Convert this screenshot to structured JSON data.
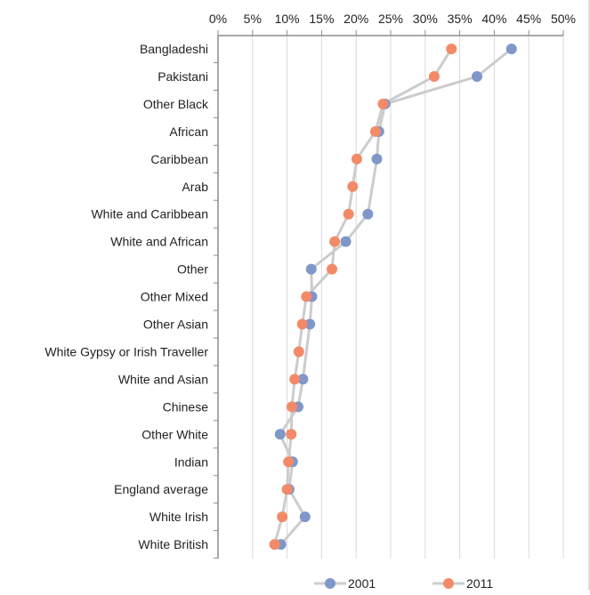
{
  "chart_data": {
    "type": "line",
    "orientation": "horizontal-dot-plot",
    "title": "",
    "xlabel": "",
    "ylabel": "",
    "xlim": [
      0,
      50
    ],
    "x_tick_labels": [
      "0%",
      "5%",
      "10%",
      "15%",
      "20%",
      "25%",
      "30%",
      "35%",
      "40%",
      "45%",
      "50%"
    ],
    "categories": [
      "Bangladeshi",
      "Pakistani",
      "Other Black",
      "African",
      "Caribbean",
      "Arab",
      "White and Caribbean",
      "White and African",
      "Other",
      "Other Mixed",
      "Other Asian",
      "White Gypsy or Irish Traveller",
      "White and Asian",
      "Chinese",
      "Other White",
      "Indian",
      "England average",
      "White Irish",
      "White British"
    ],
    "series": [
      {
        "name": "2001",
        "color": "#7f97c9",
        "values": [
          42.5,
          37.5,
          24.2,
          23.3,
          23.0,
          null,
          21.7,
          18.5,
          13.5,
          13.6,
          13.3,
          null,
          12.3,
          11.6,
          9.0,
          10.8,
          10.3,
          12.6,
          9.1
        ]
      },
      {
        "name": "2011",
        "color": "#f28a68",
        "values": [
          33.8,
          31.3,
          23.9,
          22.8,
          20.1,
          19.5,
          18.9,
          16.9,
          16.5,
          12.8,
          12.2,
          11.7,
          11.1,
          10.7,
          10.6,
          10.2,
          10.0,
          9.3,
          8.2
        ]
      }
    ],
    "connector_color": "#cccccc",
    "grid": true,
    "legend_position": "bottom"
  }
}
